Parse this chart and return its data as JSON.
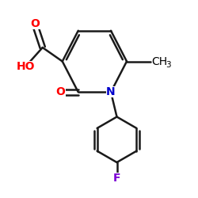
{
  "bg_color": "#ffffff",
  "bond_color": "#1a1a1a",
  "bond_width": 1.8,
  "atom_labels": [
    {
      "text": "O",
      "color": "#ff0000",
      "fontsize": 11,
      "bold": true
    },
    {
      "text": "HO",
      "color": "#ff0000",
      "fontsize": 11,
      "bold": true
    },
    {
      "text": "O",
      "color": "#ff0000",
      "fontsize": 11,
      "bold": true
    },
    {
      "text": "N",
      "color": "#0000cc",
      "fontsize": 11,
      "bold": true
    },
    {
      "text": "CH3",
      "color": "#000000",
      "fontsize": 11,
      "bold": false
    },
    {
      "text": "F",
      "color": "#7b00d4",
      "fontsize": 11,
      "bold": true
    }
  ]
}
